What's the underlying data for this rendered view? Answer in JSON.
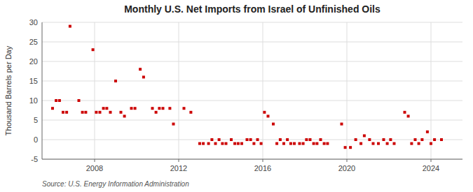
{
  "chart_data": {
    "type": "scatter",
    "title": "Monthly U.S. Net Imports from Israel of Unfinished Oils",
    "ylabel": "Thousand Barrels per Day",
    "annotations": [
      "Source: U.S. Energy Information Administration"
    ],
    "color": "#cc0000",
    "marker": "square",
    "grid": true,
    "xlim": [
      2005.5,
      2025.5
    ],
    "xticks": [
      2008,
      2012,
      2016,
      2020,
      2024
    ],
    "ylim": [
      -5,
      30
    ],
    "yticks": [
      -5,
      0,
      5,
      10,
      15,
      20,
      25,
      30
    ],
    "x": [
      2006.0,
      2006.17,
      2006.33,
      2006.5,
      2006.67,
      2006.83,
      2007.25,
      2007.42,
      2007.58,
      2007.92,
      2008.08,
      2008.25,
      2008.42,
      2008.58,
      2008.75,
      2009.0,
      2009.25,
      2009.42,
      2009.75,
      2009.92,
      2010.17,
      2010.33,
      2010.75,
      2010.92,
      2011.08,
      2011.25,
      2011.58,
      2011.75,
      2012.25,
      2012.58,
      2013.0,
      2013.17,
      2013.42,
      2013.58,
      2013.75,
      2013.92,
      2014.08,
      2014.25,
      2014.5,
      2014.67,
      2014.83,
      2015.0,
      2015.25,
      2015.42,
      2015.58,
      2015.75,
      2015.92,
      2016.08,
      2016.25,
      2016.5,
      2016.67,
      2016.83,
      2017.0,
      2017.17,
      2017.33,
      2017.5,
      2017.75,
      2017.92,
      2018.08,
      2018.25,
      2018.42,
      2018.58,
      2018.75,
      2018.92,
      2019.08,
      2019.75,
      2019.92,
      2020.17,
      2020.42,
      2020.67,
      2020.83,
      2021.08,
      2021.25,
      2021.5,
      2021.75,
      2021.92,
      2022.08,
      2022.25,
      2022.75,
      2022.92,
      2023.08,
      2023.25,
      2023.42,
      2023.58,
      2023.83,
      2024.0,
      2024.17,
      2024.5
    ],
    "values": [
      8,
      10,
      10,
      7,
      7,
      29,
      10,
      7,
      7,
      23,
      7,
      7,
      8,
      8,
      7,
      15,
      7,
      6,
      8,
      8,
      18,
      16,
      8,
      7,
      8,
      8,
      8,
      4,
      8,
      7,
      -1,
      -1,
      -1,
      0,
      -1,
      0,
      -1,
      -1,
      0,
      -1,
      -1,
      -1,
      0,
      0,
      -1,
      0,
      -1,
      7,
      6,
      4,
      -1,
      0,
      -1,
      0,
      -1,
      -1,
      -1,
      -1,
      0,
      0,
      -1,
      -1,
      0,
      -1,
      -1,
      4,
      -2,
      -2,
      0,
      -1,
      1,
      0,
      -1,
      -1,
      0,
      -1,
      0,
      -1,
      7,
      6,
      -1,
      0,
      -1,
      0,
      2,
      -1,
      0,
      0
    ]
  }
}
